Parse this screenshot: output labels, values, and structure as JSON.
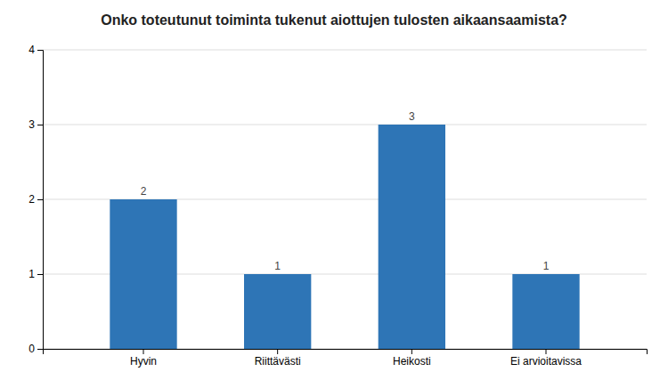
{
  "chart_data": {
    "type": "bar",
    "title": "Onko toteutunut toiminta tukenut aiottujen tulosten aikaansaamista?",
    "categories": [
      "Hyvin",
      "Riittävästi",
      "Heikosti",
      "Ei arvioitavissa"
    ],
    "values": [
      2,
      1,
      3,
      1
    ],
    "color": "#2e75b6",
    "ylim": [
      0,
      4
    ],
    "yticks": [
      0,
      1,
      2,
      3,
      4
    ],
    "grid": true,
    "data_labels": true
  }
}
